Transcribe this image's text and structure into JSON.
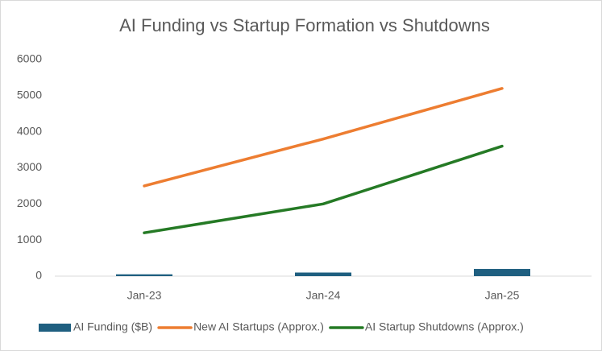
{
  "chart_data": {
    "type": "combo",
    "title": "AI Funding vs Startup Formation vs Shutdowns",
    "categories": [
      "Jan-23",
      "Jan-24",
      "Jan-25"
    ],
    "series": [
      {
        "name": "AI Funding ($B)",
        "type": "bar",
        "color": "#1f5f80",
        "values": [
          50,
          100,
          200
        ]
      },
      {
        "name": "New AI Startups (Approx.)",
        "type": "line",
        "color": "#ed7d31",
        "values": [
          2500,
          3800,
          5200
        ]
      },
      {
        "name": "AI Startup Shutdowns (Approx.)",
        "type": "line",
        "color": "#257a25",
        "values": [
          1200,
          2000,
          3600
        ]
      }
    ],
    "ylim": [
      0,
      6000
    ],
    "yticks": [
      0,
      1000,
      2000,
      3000,
      4000,
      5000,
      6000
    ],
    "grid": false,
    "legend": "bottom"
  }
}
